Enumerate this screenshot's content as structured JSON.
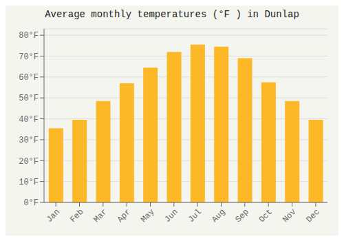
{
  "chart_data": {
    "type": "bar",
    "title": "Average monthly temperatures (°F ) in Dunlap",
    "categories": [
      "Jan",
      "Feb",
      "Mar",
      "Apr",
      "May",
      "Jun",
      "Jul",
      "Aug",
      "Sep",
      "Oct",
      "Nov",
      "Dec"
    ],
    "values": [
      35.5,
      39.5,
      48.5,
      57.0,
      64.5,
      72.0,
      75.5,
      74.5,
      69.0,
      57.5,
      48.5,
      39.5
    ],
    "color": "#FDB827",
    "ylim": [
      0,
      83
    ],
    "yticks": [
      {
        "value": 0,
        "label": "0°F"
      },
      {
        "value": 10,
        "label": "10°F"
      },
      {
        "value": 20,
        "label": "20°F"
      },
      {
        "value": 30,
        "label": "30°F"
      },
      {
        "value": 40,
        "label": "40°F"
      },
      {
        "value": 50,
        "label": "50°F"
      },
      {
        "value": 60,
        "label": "60°F"
      },
      {
        "value": 70,
        "label": "70°F"
      },
      {
        "value": 80,
        "label": "80°F"
      }
    ],
    "grid": true
  }
}
